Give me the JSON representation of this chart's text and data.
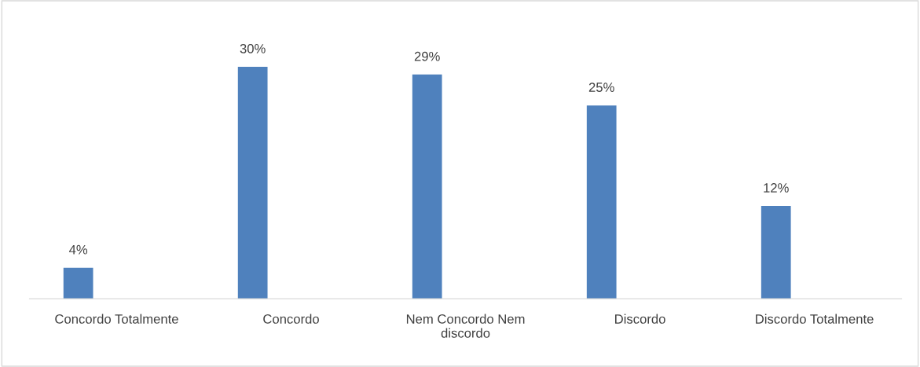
{
  "chart_data": {
    "type": "bar",
    "categories": [
      "Concordo Totalmente",
      "Concordo",
      "Nem Concordo Nem discordo",
      "Discordo",
      "Discordo Totalmente"
    ],
    "values": [
      4,
      30,
      29,
      25,
      12
    ],
    "value_labels": [
      "4%",
      "30%",
      "29%",
      "25%",
      "12%"
    ],
    "color": "#4f81bd",
    "grid": false,
    "legend": false
  }
}
